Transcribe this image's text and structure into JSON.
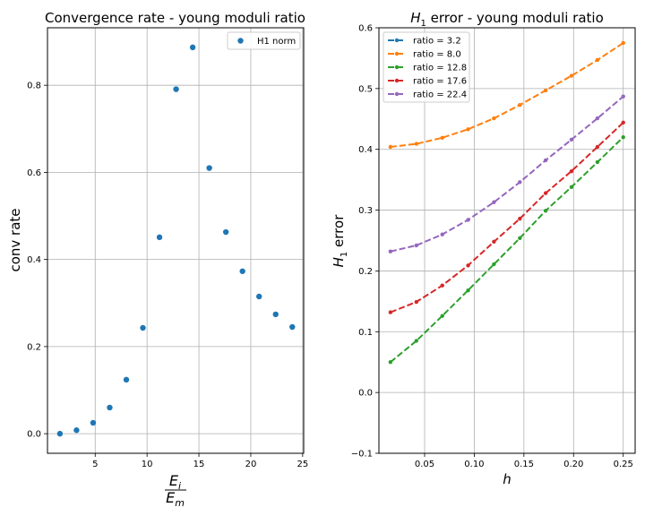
{
  "chart_data": [
    {
      "type": "scatter",
      "title": "Convergence rate - young moduli ratio",
      "xlabel": {
        "numerator": "E",
        "numerator_sub": "i",
        "denominator": "E",
        "denominator_sub": "m"
      },
      "ylabel": "conv rate",
      "xlim": [
        0.4,
        25.1
      ],
      "ylim": [
        -0.045,
        0.932
      ],
      "xticks": [
        5,
        10,
        15,
        20,
        25
      ],
      "xtick_labels": [
        "5",
        "10",
        "15",
        "20",
        "25"
      ],
      "yticks": [
        0.0,
        0.2,
        0.4,
        0.6,
        0.8
      ],
      "ytick_labels": [
        "0.0",
        "0.2",
        "0.4",
        "0.6",
        "0.8"
      ],
      "grid": true,
      "legend": {
        "position": "top-right"
      },
      "series": [
        {
          "name": "H1 norm",
          "color": "#1f77b4",
          "marker": "circle",
          "x": [
            1.6,
            3.2,
            4.8,
            6.4,
            8.0,
            9.6,
            11.2,
            12.8,
            14.4,
            16.0,
            17.6,
            19.2,
            20.8,
            22.4,
            24.0
          ],
          "y": [
            0.0,
            0.008,
            0.025,
            0.06,
            0.124,
            0.243,
            0.451,
            0.791,
            0.887,
            0.61,
            0.463,
            0.373,
            0.315,
            0.274,
            0.245
          ]
        }
      ]
    },
    {
      "type": "line",
      "title": {
        "main": "H",
        "sub": "1",
        "rest": " error - young moduli ratio"
      },
      "xlabel": "h",
      "ylabel": {
        "main": "H",
        "sub": "1",
        "rest": " error"
      },
      "xlim": [
        0.004,
        0.262
      ],
      "ylim": [
        -0.1,
        0.6
      ],
      "xticks": [
        0.05,
        0.1,
        0.15,
        0.2,
        0.25
      ],
      "xtick_labels": [
        "0.05",
        "0.10",
        "0.15",
        "0.20",
        "0.25"
      ],
      "yticks": [
        -0.1,
        0.0,
        0.1,
        0.2,
        0.3,
        0.4,
        0.5,
        0.6
      ],
      "ytick_labels": [
        "−0.1",
        "0.0",
        "0.1",
        "0.2",
        "0.3",
        "0.4",
        "0.5",
        "0.6"
      ],
      "grid": true,
      "legend": {
        "position": "top-left"
      },
      "x": [
        0.0156,
        0.0417,
        0.0678,
        0.0938,
        0.1198,
        0.1459,
        0.1719,
        0.1979,
        0.224,
        0.25
      ],
      "series": [
        {
          "name": "ratio = 3.2",
          "color": "#1f77b4",
          "values": [
            null,
            null,
            null,
            null,
            null,
            null,
            null,
            null,
            null,
            null
          ]
        },
        {
          "name": "ratio = 8.0",
          "color": "#ff7f0e",
          "values": [
            0.404,
            0.409,
            0.419,
            0.433,
            0.451,
            0.473,
            0.497,
            0.521,
            0.547,
            0.575
          ]
        },
        {
          "name": "ratio = 12.8",
          "color": "#2ca02c",
          "values": [
            0.05,
            0.085,
            0.126,
            0.168,
            0.211,
            0.254,
            0.299,
            0.338,
            0.379,
            0.42
          ]
        },
        {
          "name": "ratio = 17.6",
          "color": "#d62728",
          "values": [
            0.132,
            0.149,
            0.176,
            0.209,
            0.248,
            0.286,
            0.328,
            0.364,
            0.404,
            0.444
          ]
        },
        {
          "name": "ratio = 22.4",
          "color": "#9467bd",
          "values": [
            0.232,
            0.242,
            0.26,
            0.284,
            0.313,
            0.346,
            0.382,
            0.416,
            0.451,
            0.487
          ]
        }
      ]
    }
  ]
}
